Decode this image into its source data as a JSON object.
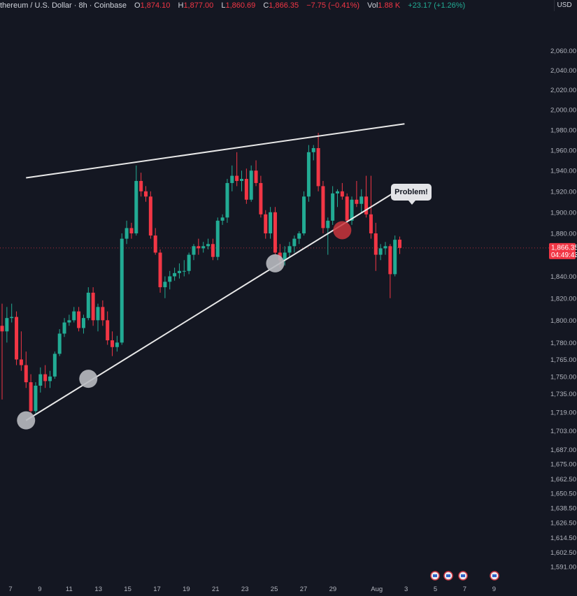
{
  "header": {
    "symbol": "thereum / U.S. Dollar · 8h · Coinbase",
    "open_label": "O",
    "open": "1,874.10",
    "high_label": "H",
    "high": "1,877.00",
    "low_label": "L",
    "low": "1,860.69",
    "close_label": "C",
    "close": "1,866.35",
    "change": "−7.75 (−0.41%)",
    "vol_label": "Vol",
    "vol": "1.88 K",
    "vol_change": "+23.17 (+1.26%)"
  },
  "currency_button": "USD",
  "callout": {
    "text": "Problem!"
  },
  "price_label": {
    "price": "1,866.35",
    "countdown": "04:49:43"
  },
  "colors": {
    "background": "#141722",
    "up": "#22ab94",
    "down": "#f23645",
    "trendline": "#e8e8e8",
    "touch_marker": "#b8bac0",
    "problem_marker": "#c9353c"
  },
  "chart_data": {
    "type": "candlestick",
    "y_scale": "log",
    "ylim": [
      1585,
      2080
    ],
    "grid": false,
    "y_ticks": [
      "2,060.00",
      "2,040.00",
      "2,020.00",
      "2,000.00",
      "1,980.00",
      "1,960.00",
      "1,940.00",
      "1,920.00",
      "1,900.00",
      "1,880.00",
      "1,860.00",
      "1,840.00",
      "1,820.00",
      "1,800.00",
      "1,780.00",
      "1,765.00",
      "1,750.00",
      "1,735.00",
      "1,719.00",
      "1,703.00",
      "1,687.00",
      "1,675.00",
      "1,662.50",
      "1,650.50",
      "1,638.50",
      "1,626.50",
      "1,614.50",
      "1,602.50",
      "1,591.00"
    ],
    "x_ticks": [
      {
        "label": "7",
        "day": 7
      },
      {
        "label": "9",
        "day": 9
      },
      {
        "label": "11",
        "day": 11
      },
      {
        "label": "13",
        "day": 13
      },
      {
        "label": "15",
        "day": 15
      },
      {
        "label": "17",
        "day": 17
      },
      {
        "label": "19",
        "day": 19
      },
      {
        "label": "21",
        "day": 21
      },
      {
        "label": "23",
        "day": 23
      },
      {
        "label": "25",
        "day": 25
      },
      {
        "label": "27",
        "day": 27
      },
      {
        "label": "29",
        "day": 29
      },
      {
        "label": "Aug",
        "day": 32
      },
      {
        "label": "3",
        "day": 34
      },
      {
        "label": "5",
        "day": 36
      },
      {
        "label": "7",
        "day": 38
      },
      {
        "label": "9",
        "day": 40
      }
    ],
    "candles": [
      {
        "o": 1795,
        "h": 1815,
        "l": 1730,
        "c": 1790
      },
      {
        "o": 1790,
        "h": 1812,
        "l": 1780,
        "c": 1802
      },
      {
        "o": 1802,
        "h": 1815,
        "l": 1798,
        "c": 1803
      },
      {
        "o": 1803,
        "h": 1808,
        "l": 1760,
        "c": 1765
      },
      {
        "o": 1765,
        "h": 1790,
        "l": 1755,
        "c": 1760
      },
      {
        "o": 1760,
        "h": 1772,
        "l": 1740,
        "c": 1745
      },
      {
        "o": 1745,
        "h": 1752,
        "l": 1715,
        "c": 1720
      },
      {
        "o": 1720,
        "h": 1745,
        "l": 1718,
        "c": 1742
      },
      {
        "o": 1742,
        "h": 1758,
        "l": 1736,
        "c": 1752
      },
      {
        "o": 1752,
        "h": 1760,
        "l": 1740,
        "c": 1746
      },
      {
        "o": 1746,
        "h": 1755,
        "l": 1740,
        "c": 1750
      },
      {
        "o": 1750,
        "h": 1772,
        "l": 1748,
        "c": 1770
      },
      {
        "o": 1770,
        "h": 1792,
        "l": 1768,
        "c": 1788
      },
      {
        "o": 1788,
        "h": 1802,
        "l": 1785,
        "c": 1798
      },
      {
        "o": 1798,
        "h": 1805,
        "l": 1795,
        "c": 1800
      },
      {
        "o": 1800,
        "h": 1812,
        "l": 1798,
        "c": 1808
      },
      {
        "o": 1808,
        "h": 1812,
        "l": 1790,
        "c": 1793
      },
      {
        "o": 1793,
        "h": 1805,
        "l": 1788,
        "c": 1802
      },
      {
        "o": 1802,
        "h": 1830,
        "l": 1800,
        "c": 1825
      },
      {
        "o": 1825,
        "h": 1830,
        "l": 1795,
        "c": 1800
      },
      {
        "o": 1800,
        "h": 1815,
        "l": 1790,
        "c": 1812
      },
      {
        "o": 1812,
        "h": 1818,
        "l": 1795,
        "c": 1800
      },
      {
        "o": 1800,
        "h": 1808,
        "l": 1778,
        "c": 1782
      },
      {
        "o": 1782,
        "h": 1790,
        "l": 1768,
        "c": 1776
      },
      {
        "o": 1776,
        "h": 1786,
        "l": 1772,
        "c": 1780
      },
      {
        "o": 1780,
        "h": 1880,
        "l": 1778,
        "c": 1875
      },
      {
        "o": 1875,
        "h": 1892,
        "l": 1870,
        "c": 1885
      },
      {
        "o": 1885,
        "h": 1890,
        "l": 1875,
        "c": 1880
      },
      {
        "o": 1880,
        "h": 1945,
        "l": 1878,
        "c": 1930
      },
      {
        "o": 1930,
        "h": 1938,
        "l": 1915,
        "c": 1920
      },
      {
        "o": 1920,
        "h": 1925,
        "l": 1910,
        "c": 1915
      },
      {
        "o": 1915,
        "h": 1920,
        "l": 1875,
        "c": 1878
      },
      {
        "o": 1878,
        "h": 1885,
        "l": 1860,
        "c": 1862
      },
      {
        "o": 1862,
        "h": 1865,
        "l": 1825,
        "c": 1830
      },
      {
        "o": 1830,
        "h": 1840,
        "l": 1820,
        "c": 1835
      },
      {
        "o": 1835,
        "h": 1845,
        "l": 1828,
        "c": 1840
      },
      {
        "o": 1840,
        "h": 1848,
        "l": 1836,
        "c": 1843
      },
      {
        "o": 1843,
        "h": 1852,
        "l": 1838,
        "c": 1845
      },
      {
        "o": 1845,
        "h": 1855,
        "l": 1840,
        "c": 1845
      },
      {
        "o": 1845,
        "h": 1862,
        "l": 1842,
        "c": 1860
      },
      {
        "o": 1860,
        "h": 1870,
        "l": 1855,
        "c": 1868
      },
      {
        "o": 1868,
        "h": 1875,
        "l": 1860,
        "c": 1866
      },
      {
        "o": 1866,
        "h": 1872,
        "l": 1862,
        "c": 1868
      },
      {
        "o": 1868,
        "h": 1875,
        "l": 1865,
        "c": 1870
      },
      {
        "o": 1870,
        "h": 1875,
        "l": 1855,
        "c": 1858
      },
      {
        "o": 1858,
        "h": 1895,
        "l": 1855,
        "c": 1892
      },
      {
        "o": 1892,
        "h": 1898,
        "l": 1888,
        "c": 1895
      },
      {
        "o": 1895,
        "h": 1932,
        "l": 1890,
        "c": 1928
      },
      {
        "o": 1928,
        "h": 1945,
        "l": 1920,
        "c": 1935
      },
      {
        "o": 1935,
        "h": 1958,
        "l": 1925,
        "c": 1930
      },
      {
        "o": 1930,
        "h": 1940,
        "l": 1920,
        "c": 1932
      },
      {
        "o": 1932,
        "h": 1942,
        "l": 1908,
        "c": 1912
      },
      {
        "o": 1912,
        "h": 1945,
        "l": 1910,
        "c": 1940
      },
      {
        "o": 1940,
        "h": 1950,
        "l": 1925,
        "c": 1928
      },
      {
        "o": 1928,
        "h": 1935,
        "l": 1895,
        "c": 1898
      },
      {
        "o": 1898,
        "h": 1902,
        "l": 1875,
        "c": 1880
      },
      {
        "o": 1880,
        "h": 1905,
        "l": 1875,
        "c": 1900
      },
      {
        "o": 1900,
        "h": 1905,
        "l": 1860,
        "c": 1862
      },
      {
        "o": 1862,
        "h": 1870,
        "l": 1848,
        "c": 1855
      },
      {
        "o": 1855,
        "h": 1868,
        "l": 1850,
        "c": 1862
      },
      {
        "o": 1862,
        "h": 1872,
        "l": 1858,
        "c": 1868
      },
      {
        "o": 1868,
        "h": 1878,
        "l": 1862,
        "c": 1875
      },
      {
        "o": 1875,
        "h": 1882,
        "l": 1870,
        "c": 1880
      },
      {
        "o": 1880,
        "h": 1920,
        "l": 1878,
        "c": 1915
      },
      {
        "o": 1915,
        "h": 1965,
        "l": 1910,
        "c": 1958
      },
      {
        "o": 1958,
        "h": 1965,
        "l": 1950,
        "c": 1962
      },
      {
        "o": 1962,
        "h": 1977,
        "l": 1920,
        "c": 1925
      },
      {
        "o": 1925,
        "h": 1930,
        "l": 1880,
        "c": 1885
      },
      {
        "o": 1885,
        "h": 1895,
        "l": 1860,
        "c": 1892
      },
      {
        "o": 1892,
        "h": 1925,
        "l": 1888,
        "c": 1918
      },
      {
        "o": 1918,
        "h": 1922,
        "l": 1905,
        "c": 1920
      },
      {
        "o": 1920,
        "h": 1928,
        "l": 1912,
        "c": 1915
      },
      {
        "o": 1915,
        "h": 1918,
        "l": 1890,
        "c": 1892
      },
      {
        "o": 1892,
        "h": 1915,
        "l": 1888,
        "c": 1912
      },
      {
        "o": 1912,
        "h": 1930,
        "l": 1905,
        "c": 1908
      },
      {
        "o": 1908,
        "h": 1922,
        "l": 1900,
        "c": 1915
      },
      {
        "o": 1915,
        "h": 1935,
        "l": 1895,
        "c": 1898
      },
      {
        "o": 1898,
        "h": 1935,
        "l": 1875,
        "c": 1880
      },
      {
        "o": 1880,
        "h": 1890,
        "l": 1845,
        "c": 1860
      },
      {
        "o": 1860,
        "h": 1870,
        "l": 1855,
        "c": 1866
      },
      {
        "o": 1866,
        "h": 1872,
        "l": 1860,
        "c": 1868
      },
      {
        "o": 1868,
        "h": 1870,
        "l": 1820,
        "c": 1842
      },
      {
        "o": 1842,
        "h": 1878,
        "l": 1840,
        "c": 1874
      },
      {
        "o": 1874.1,
        "h": 1877.0,
        "l": 1860.69,
        "c": 1866.35
      }
    ],
    "trendlines": [
      {
        "name": "resistance",
        "from": {
          "bar": 5,
          "price": 1933
        },
        "to": {
          "bar": 84,
          "price": 1986
        }
      },
      {
        "name": "support",
        "from": {
          "bar": 5,
          "price": 1712
        },
        "to": {
          "bar": 84,
          "price": 1925
        }
      }
    ],
    "touch_points": [
      {
        "bar": 5,
        "price": 1712,
        "kind": "touch"
      },
      {
        "bar": 18,
        "price": 1748,
        "kind": "touch"
      },
      {
        "bar": 57,
        "price": 1852,
        "kind": "touch"
      },
      {
        "bar": 71,
        "price": 1883,
        "kind": "problem"
      }
    ]
  }
}
